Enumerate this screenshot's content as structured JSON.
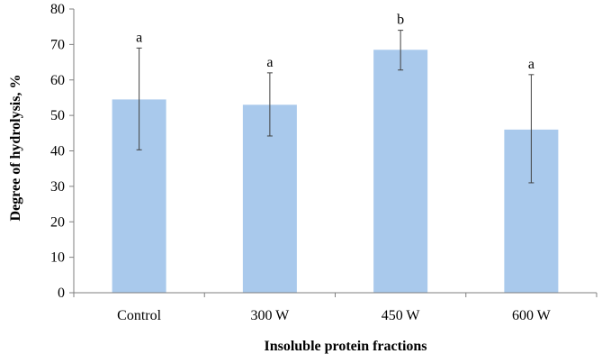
{
  "chart_data": {
    "type": "bar",
    "title": "",
    "xlabel": "Insoluble protein fractions",
    "ylabel": "Degree of hydrolysis, %",
    "ylim": [
      0,
      80
    ],
    "yticks": [
      0,
      10,
      20,
      30,
      40,
      50,
      60,
      70,
      80
    ],
    "grid": false,
    "legend": "none",
    "bar_color": "#a9c9ec",
    "errorbar_color": "#404040",
    "axis_color": "#7f7f7f",
    "categories": [
      "Control",
      "300 W",
      "450 W",
      "600 W"
    ],
    "values": [
      54.5,
      53.0,
      68.5,
      46.0
    ],
    "error_upper": [
      69.0,
      62.0,
      74.0,
      61.5
    ],
    "error_lower": [
      40.3,
      44.2,
      62.8,
      31.0
    ],
    "significance_letters": [
      "a",
      "a",
      "b",
      "a"
    ]
  }
}
